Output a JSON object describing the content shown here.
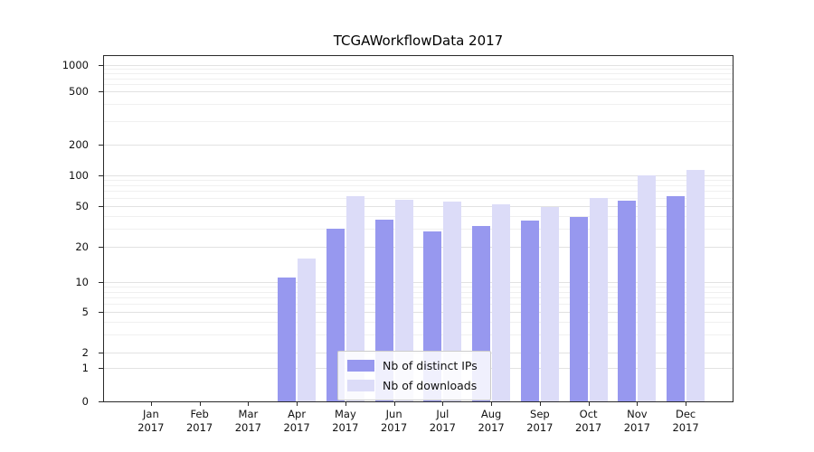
{
  "chart_data": {
    "type": "bar",
    "title": "TCGAWorkflowData 2017",
    "scale": "symlog",
    "grid": true,
    "legend_position": "lower-center-inside",
    "categories": [
      "Jan",
      "Feb",
      "Mar",
      "Apr",
      "May",
      "Jun",
      "Jul",
      "Aug",
      "Sep",
      "Oct",
      "Nov",
      "Dec"
    ],
    "year": "2017",
    "yticks": [
      0,
      1,
      2,
      5,
      10,
      20,
      50,
      100,
      200,
      500,
      1000
    ],
    "ylim": [
      0,
      1000
    ],
    "xlabel": "",
    "ylabel": "",
    "series": [
      {
        "name": "Nb of distinct IPs",
        "color": "#9798ef",
        "values": [
          0,
          0,
          0,
          11,
          30,
          37,
          28,
          32,
          36,
          39,
          57,
          63
        ]
      },
      {
        "name": "Nb of downloads",
        "color": "#dcdcf8",
        "values": [
          0,
          0,
          0,
          16,
          62,
          58,
          55,
          52,
          49,
          60,
          100,
          112
        ]
      }
    ]
  },
  "colors": {
    "grid_major": "#e2e2e2",
    "grid_minor": "#f0f0f0",
    "axis": "#2a2a2a",
    "legend_border": "#cccccc",
    "background": "#ffffff"
  }
}
